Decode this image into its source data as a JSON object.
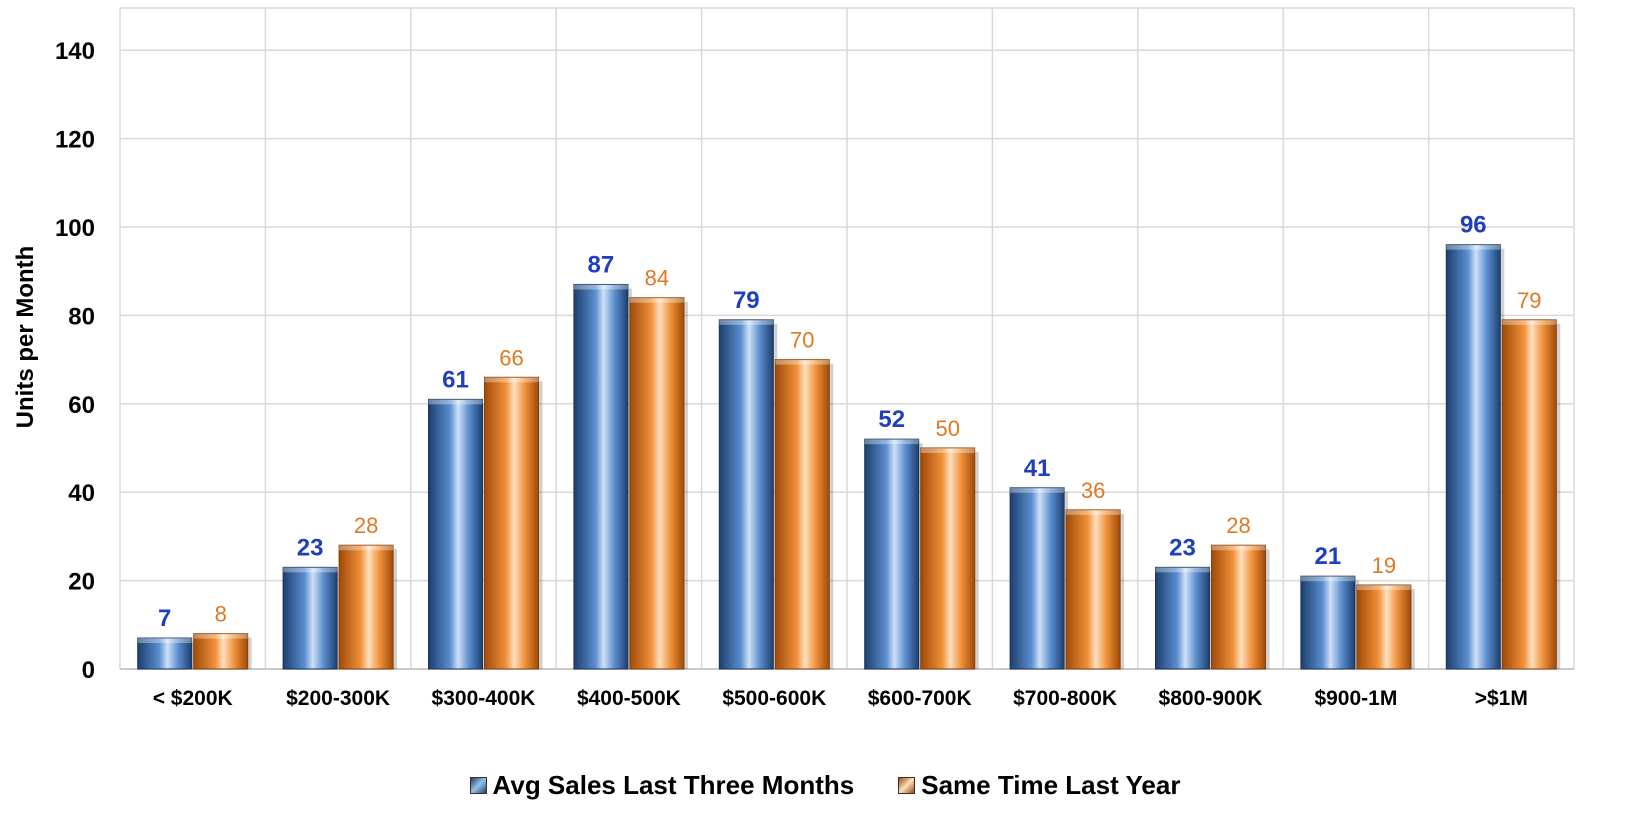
{
  "chart_data": {
    "type": "bar",
    "ylabel": "Units per Month",
    "ylim": [
      0,
      150
    ],
    "yticks": [
      0,
      20,
      40,
      60,
      80,
      100,
      120,
      140
    ],
    "grid": true,
    "legend_position": "bottom",
    "categories": [
      "< $200K",
      "$200-300K",
      "$300-400K",
      "$400-500K",
      "$500-600K",
      "$600-700K",
      "$700-800K",
      "$800-900K",
      "$900-1M",
      ">$1M"
    ],
    "series": [
      {
        "name": "Avg Sales Last Three Months",
        "color": "#2f5d9e",
        "label_color": "#1f3fbf",
        "values": [
          7,
          23,
          61,
          87,
          79,
          52,
          41,
          23,
          21,
          96
        ],
        "labels": [
          "7",
          "23",
          "61",
          "87",
          "79",
          "52",
          "41",
          "23",
          "21",
          "96"
        ]
      },
      {
        "name": "Same Time Last Year",
        "color": "#e07820",
        "label_color": "#e07820",
        "values": [
          8,
          28,
          66,
          84,
          70,
          50,
          36,
          28,
          19,
          79
        ],
        "labels": [
          "8",
          "28",
          "66",
          "84",
          "70",
          "50",
          "36",
          "28",
          "19",
          "79"
        ]
      }
    ]
  }
}
